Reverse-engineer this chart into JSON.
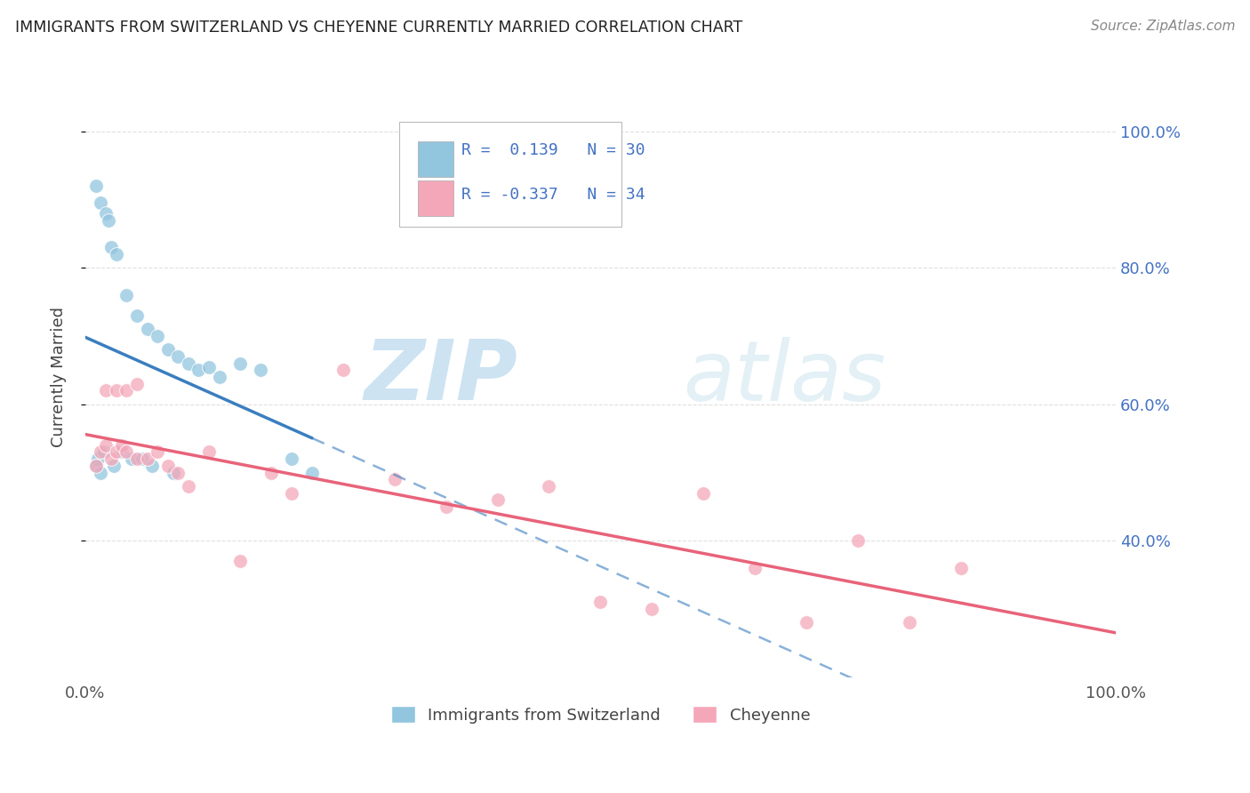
{
  "title": "IMMIGRANTS FROM SWITZERLAND VS CHEYENNE CURRENTLY MARRIED CORRELATION CHART",
  "source": "Source: ZipAtlas.com",
  "ylabel": "Currently Married",
  "legend_blue_r": "0.139",
  "legend_blue_n": "30",
  "legend_pink_r": "-0.337",
  "legend_pink_n": "34",
  "legend_label_blue": "Immigrants from Switzerland",
  "legend_label_pink": "Cheyenne",
  "blue_color": "#92c5de",
  "pink_color": "#f4a7b9",
  "blue_line_color": "#3a7ebf",
  "pink_line_color": "#e8637a",
  "watermark_zip": "ZIP",
  "watermark_atlas": "atlas",
  "blue_x": [
    1.0,
    1.5,
    2.0,
    2.2,
    2.5,
    3.0,
    4.0,
    5.0,
    6.0,
    7.0,
    8.0,
    9.0,
    10.0,
    11.0,
    12.0,
    13.0,
    15.0,
    17.0,
    20.0,
    22.0,
    1.2,
    1.8,
    2.8,
    3.5,
    4.5,
    5.5,
    6.5,
    8.5,
    1.0,
    1.5
  ],
  "blue_y": [
    92.0,
    89.5,
    88.0,
    87.0,
    83.0,
    82.0,
    76.0,
    73.0,
    71.0,
    70.0,
    68.0,
    67.0,
    66.0,
    65.0,
    65.5,
    64.0,
    66.0,
    65.0,
    52.0,
    50.0,
    52.0,
    53.0,
    51.0,
    53.0,
    52.0,
    52.0,
    51.0,
    50.0,
    51.0,
    50.0
  ],
  "pink_x": [
    1.0,
    1.5,
    2.0,
    2.5,
    3.0,
    3.5,
    4.0,
    5.0,
    6.0,
    7.0,
    8.0,
    9.0,
    10.0,
    12.0,
    15.0,
    18.0,
    20.0,
    25.0,
    30.0,
    35.0,
    40.0,
    45.0,
    50.0,
    55.0,
    60.0,
    65.0,
    70.0,
    75.0,
    80.0,
    85.0,
    2.0,
    3.0,
    4.0,
    5.0
  ],
  "pink_y": [
    51.0,
    53.0,
    54.0,
    52.0,
    53.0,
    54.0,
    53.0,
    52.0,
    52.0,
    53.0,
    51.0,
    50.0,
    48.0,
    53.0,
    37.0,
    50.0,
    47.0,
    65.0,
    49.0,
    45.0,
    46.0,
    48.0,
    31.0,
    30.0,
    47.0,
    36.0,
    28.0,
    40.0,
    28.0,
    36.0,
    62.0,
    62.0,
    62.0,
    63.0
  ],
  "xlim": [
    0,
    100
  ],
  "ylim_min": 20,
  "ylim_max": 108,
  "y_ticks": [
    40,
    60,
    80,
    100
  ],
  "blue_solid_end": 22,
  "background_color": "#ffffff",
  "grid_color": "#e0e0e0"
}
